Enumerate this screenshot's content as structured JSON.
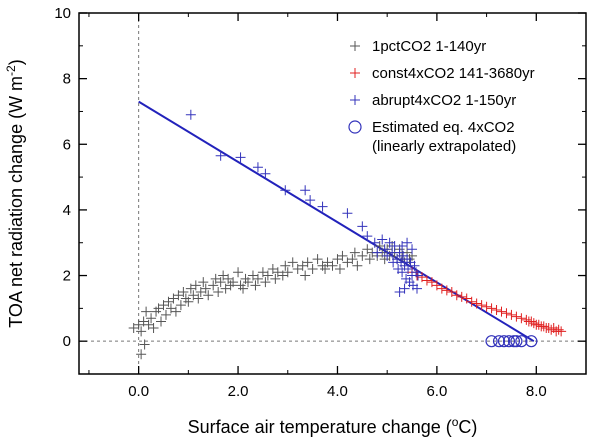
{
  "chart_data": {
    "type": "scatter",
    "title": "",
    "xlabel": "Surface air temperature change (",
    "xlabel_unit": "o",
    "xlabel_suffix": "C)",
    "ylabel": "TOA net radiation change (W m",
    "ylabel_exp": "-2",
    "ylabel_suffix": ")",
    "xlim": [
      -1.2,
      9.0
    ],
    "ylim": [
      -1,
      10
    ],
    "x_ticks": [
      0,
      2,
      4,
      6,
      8
    ],
    "x_tick_labels": [
      "0.0",
      "2.0",
      "4.0",
      "6.0",
      "8.0"
    ],
    "y_ticks": [
      0,
      2,
      4,
      6,
      8,
      10
    ],
    "y_tick_labels": [
      "0",
      "2",
      "4",
      "6",
      "8",
      "10"
    ],
    "reference_lines": {
      "x": 0,
      "y": 0,
      "style": "dashed"
    },
    "legend_position": "top-right",
    "series": [
      {
        "name": "1pctCO2 1-140yr",
        "marker": "plus",
        "color": "#555555",
        "points": [
          [
            -0.1,
            0.4
          ],
          [
            0.0,
            0.5
          ],
          [
            0.05,
            -0.4
          ],
          [
            0.05,
            0.3
          ],
          [
            0.1,
            0.6
          ],
          [
            0.12,
            -0.1
          ],
          [
            0.15,
            0.9
          ],
          [
            0.2,
            0.5
          ],
          [
            0.25,
            0.7
          ],
          [
            0.3,
            0.4
          ],
          [
            0.35,
            0.9
          ],
          [
            0.4,
            1.0
          ],
          [
            0.45,
            0.6
          ],
          [
            0.5,
            1.1
          ],
          [
            0.55,
            0.8
          ],
          [
            0.6,
            1.2
          ],
          [
            0.65,
            1.0
          ],
          [
            0.7,
            1.3
          ],
          [
            0.75,
            0.9
          ],
          [
            0.8,
            1.4
          ],
          [
            0.85,
            1.1
          ],
          [
            0.9,
            1.5
          ],
          [
            0.95,
            1.3
          ],
          [
            1.0,
            1.2
          ],
          [
            1.05,
            1.6
          ],
          [
            1.1,
            1.4
          ],
          [
            1.15,
            1.7
          ],
          [
            1.2,
            1.3
          ],
          [
            1.25,
            1.5
          ],
          [
            1.3,
            1.8
          ],
          [
            1.35,
            1.6
          ],
          [
            1.4,
            1.4
          ],
          [
            1.5,
            1.7
          ],
          [
            1.55,
            1.9
          ],
          [
            1.6,
            1.5
          ],
          [
            1.65,
            1.8
          ],
          [
            1.7,
            2.0
          ],
          [
            1.75,
            1.6
          ],
          [
            1.8,
            1.9
          ],
          [
            1.85,
            1.7
          ],
          [
            1.9,
            1.8
          ],
          [
            2.0,
            2.1
          ],
          [
            2.05,
            1.7
          ],
          [
            2.1,
            1.6
          ],
          [
            2.15,
            1.9
          ],
          [
            2.2,
            1.8
          ],
          [
            2.3,
            2.0
          ],
          [
            2.35,
            1.7
          ],
          [
            2.4,
            1.9
          ],
          [
            2.5,
            2.1
          ],
          [
            2.55,
            1.8
          ],
          [
            2.6,
            2.0
          ],
          [
            2.7,
            2.2
          ],
          [
            2.75,
            1.9
          ],
          [
            2.8,
            2.1
          ],
          [
            2.9,
            2.0
          ],
          [
            2.95,
            2.3
          ],
          [
            3.0,
            2.1
          ],
          [
            3.1,
            2.4
          ],
          [
            3.2,
            2.2
          ],
          [
            3.3,
            2.3
          ],
          [
            3.35,
            2.0
          ],
          [
            3.4,
            2.4
          ],
          [
            3.5,
            2.2
          ],
          [
            3.6,
            2.5
          ],
          [
            3.7,
            2.3
          ],
          [
            3.75,
            2.2
          ],
          [
            3.8,
            2.4
          ],
          [
            3.9,
            2.3
          ],
          [
            4.0,
            2.5
          ],
          [
            4.05,
            2.2
          ],
          [
            4.1,
            2.6
          ],
          [
            4.2,
            2.4
          ],
          [
            4.3,
            2.5
          ],
          [
            4.35,
            2.7
          ],
          [
            4.4,
            2.3
          ],
          [
            4.5,
            2.6
          ],
          [
            4.6,
            2.8
          ],
          [
            4.65,
            2.5
          ],
          [
            4.7,
            2.7
          ],
          [
            4.8,
            2.6
          ],
          [
            4.85,
            2.9
          ],
          [
            4.9,
            2.7
          ],
          [
            4.95,
            2.5
          ],
          [
            5.0,
            2.8
          ],
          [
            5.05,
            2.6
          ],
          [
            5.1,
            2.9
          ],
          [
            5.15,
            2.7
          ],
          [
            5.2,
            2.5
          ],
          [
            5.25,
            2.8
          ],
          [
            5.3,
            2.6
          ],
          [
            5.35,
            2.4
          ],
          [
            5.4,
            2.7
          ],
          [
            5.45,
            2.5
          ],
          [
            5.5,
            2.6
          ]
        ]
      },
      {
        "name": "const4xCO2 141-3680yr",
        "marker": "plus",
        "color": "#e02020",
        "points": [
          [
            5.5,
            2.1
          ],
          [
            5.6,
            2.0
          ],
          [
            5.7,
            1.95
          ],
          [
            5.8,
            1.85
          ],
          [
            5.9,
            1.8
          ],
          [
            6.0,
            1.7
          ],
          [
            6.1,
            1.6
          ],
          [
            6.2,
            1.55
          ],
          [
            6.3,
            1.5
          ],
          [
            6.4,
            1.4
          ],
          [
            6.5,
            1.35
          ],
          [
            6.6,
            1.3
          ],
          [
            6.7,
            1.2
          ],
          [
            6.8,
            1.15
          ],
          [
            6.9,
            1.1
          ],
          [
            7.0,
            1.05
          ],
          [
            7.1,
            1.0
          ],
          [
            7.2,
            0.95
          ],
          [
            7.3,
            0.9
          ],
          [
            7.4,
            0.85
          ],
          [
            7.5,
            0.8
          ],
          [
            7.6,
            0.75
          ],
          [
            7.7,
            0.7
          ],
          [
            7.8,
            0.65
          ],
          [
            7.85,
            0.6
          ],
          [
            7.9,
            0.6
          ],
          [
            7.95,
            0.55
          ],
          [
            8.0,
            0.5
          ],
          [
            8.05,
            0.5
          ],
          [
            8.1,
            0.45
          ],
          [
            8.15,
            0.45
          ],
          [
            8.2,
            0.4
          ],
          [
            8.25,
            0.4
          ],
          [
            8.3,
            0.35
          ],
          [
            8.35,
            0.4
          ],
          [
            8.4,
            0.3
          ],
          [
            8.45,
            0.35
          ],
          [
            8.5,
            0.3
          ]
        ]
      },
      {
        "name": "abrupt4xCO2 1-150yr",
        "marker": "plus",
        "color": "#3333bb",
        "points": [
          [
            1.05,
            6.9
          ],
          [
            1.65,
            5.65
          ],
          [
            2.05,
            5.6
          ],
          [
            2.4,
            5.3
          ],
          [
            2.55,
            5.1
          ],
          [
            2.95,
            4.6
          ],
          [
            3.35,
            4.6
          ],
          [
            3.45,
            4.3
          ],
          [
            3.7,
            4.1
          ],
          [
            4.2,
            3.9
          ],
          [
            4.5,
            3.5
          ],
          [
            4.6,
            3.2
          ],
          [
            4.75,
            3.0
          ],
          [
            4.8,
            2.7
          ],
          [
            4.9,
            3.1
          ],
          [
            4.95,
            2.8
          ],
          [
            5.0,
            2.6
          ],
          [
            5.05,
            3.0
          ],
          [
            5.1,
            2.7
          ],
          [
            5.12,
            2.4
          ],
          [
            5.15,
            2.9
          ],
          [
            5.2,
            2.5
          ],
          [
            5.22,
            2.2
          ],
          [
            5.25,
            2.7
          ],
          [
            5.28,
            2.4
          ],
          [
            5.3,
            2.1
          ],
          [
            5.32,
            2.6
          ],
          [
            5.35,
            2.3
          ],
          [
            5.38,
            1.9
          ],
          [
            5.4,
            2.5
          ],
          [
            5.42,
            2.2
          ],
          [
            5.45,
            1.8
          ],
          [
            5.47,
            2.4
          ],
          [
            5.5,
            2.0
          ],
          [
            5.52,
            1.7
          ],
          [
            5.55,
            2.3
          ],
          [
            5.58,
            2.1
          ],
          [
            5.6,
            1.6
          ],
          [
            5.62,
            2.0
          ],
          [
            5.3,
            2.9
          ],
          [
            5.4,
            3.0
          ],
          [
            5.5,
            2.8
          ],
          [
            5.25,
            1.5
          ],
          [
            5.35,
            1.6
          ]
        ]
      },
      {
        "name": "Estimated eq. 4xCO2",
        "name_line2": "(linearly extrapolated)",
        "marker": "circle",
        "color": "#3333bb",
        "points": [
          [
            7.1,
            0
          ],
          [
            7.25,
            0
          ],
          [
            7.35,
            0
          ],
          [
            7.45,
            0
          ],
          [
            7.55,
            0
          ],
          [
            7.6,
            0
          ],
          [
            7.7,
            0
          ],
          [
            7.9,
            0
          ]
        ]
      }
    ],
    "regression_line": {
      "color": "#2222bb",
      "points": [
        [
          0,
          7.3
        ],
        [
          7.95,
          0
        ]
      ]
    }
  }
}
